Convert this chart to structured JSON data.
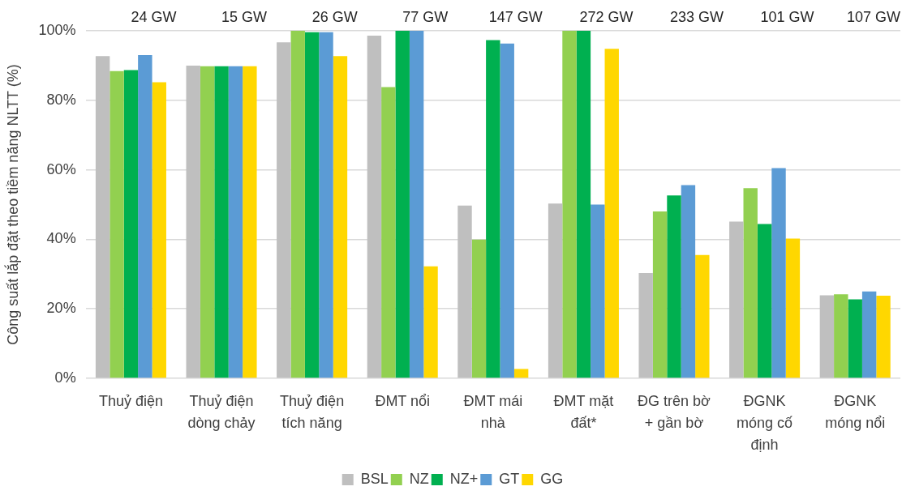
{
  "chart_data": {
    "type": "bar",
    "ylabel": "Công suất lắp đặt theo tiềm năng NLTT (%)",
    "categories": [
      "Thuỷ điện",
      "Thuỷ điện dòng chảy",
      "Thuỷ điện tích năng",
      "ĐMT nổi",
      "ĐMT mái nhà",
      "ĐMT mặt đất*",
      "ĐG trên bờ + gần bờ",
      "ĐGNK móng cố định",
      "ĐGNK móng nổi"
    ],
    "series": [
      {
        "name": "BSL",
        "color": "#bfbfbf",
        "values": [
          92.7,
          90.0,
          96.7,
          98.6,
          49.7,
          50.3,
          30.3,
          45.1,
          23.9
        ]
      },
      {
        "name": "NZ",
        "color": "#92d050",
        "values": [
          88.4,
          89.8,
          100,
          83.8,
          39.9,
          100,
          48.0,
          54.7,
          24.2
        ]
      },
      {
        "name": "NZ+",
        "color": "#00b050",
        "values": [
          88.7,
          89.8,
          99.6,
          100,
          97.3,
          100,
          52.6,
          44.4,
          22.7
        ]
      },
      {
        "name": "GT",
        "color": "#5b9bd5",
        "values": [
          93.0,
          89.8,
          99.6,
          100,
          96.3,
          50.0,
          55.6,
          60.5,
          25.0
        ]
      },
      {
        "name": "GG",
        "color": "#ffd700",
        "values": [
          85.2,
          89.8,
          92.7,
          32.2,
          2.7,
          94.8,
          35.5,
          40.2,
          23.8
        ]
      }
    ],
    "ylim": [
      0,
      100
    ],
    "yticks": [
      {
        "value": 0,
        "label": "0%"
      },
      {
        "value": 20,
        "label": "20%"
      },
      {
        "value": 40,
        "label": "40%"
      },
      {
        "value": 60,
        "label": "60%"
      },
      {
        "value": 80,
        "label": "80%"
      },
      {
        "value": 100,
        "label": "100%"
      }
    ],
    "grid": "y",
    "legend": "bottom",
    "annotations": [
      "24 GW",
      "15 GW",
      "26 GW",
      "77 GW",
      "147 GW",
      "272 GW",
      "233 GW",
      "101 GW",
      "107 GW"
    ]
  }
}
